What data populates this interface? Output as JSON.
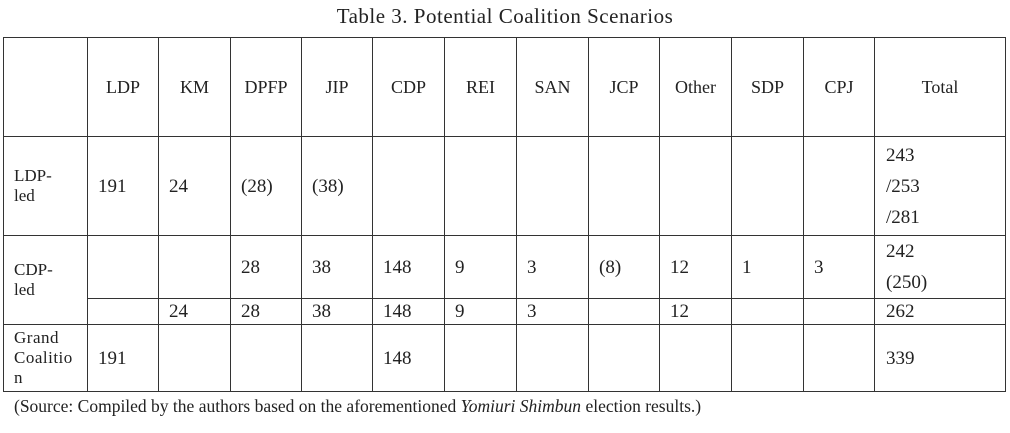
{
  "title": "Table 3. Potential Coalition Scenarios",
  "table": {
    "columns": [
      "LDP",
      "KM",
      "DPFP",
      "JIP",
      "CDP",
      "REI",
      "SAN",
      "JCP",
      "Other",
      "SDP",
      "CPJ",
      "Total"
    ],
    "groups": [
      {
        "label": [
          "LDP-",
          "led"
        ],
        "rows": [
          [
            "191",
            "24",
            "(28)",
            "(38)",
            null,
            null,
            null,
            null,
            null,
            null,
            null,
            [
              "243",
              "/253",
              "/281"
            ]
          ]
        ]
      },
      {
        "label": [
          "CDP-",
          "led"
        ],
        "rows": [
          [
            null,
            null,
            "28",
            "38",
            "148",
            "9",
            "3",
            "(8)",
            "12",
            "1",
            "3",
            [
              "242",
              "(250)"
            ]
          ],
          [
            null,
            "24",
            "28",
            "38",
            "148",
            "9",
            "3",
            null,
            "12",
            null,
            null,
            "262"
          ]
        ]
      },
      {
        "label": [
          "Grand",
          "Coalitio",
          "n"
        ],
        "rows": [
          [
            "191",
            null,
            null,
            null,
            "148",
            null,
            null,
            null,
            null,
            null,
            null,
            "339"
          ]
        ]
      }
    ]
  },
  "source": {
    "before": "(Source: Compiled by the authors based on the aforementioned ",
    "italic": "Yomiuri Shimbun",
    "after": " election results.)"
  }
}
